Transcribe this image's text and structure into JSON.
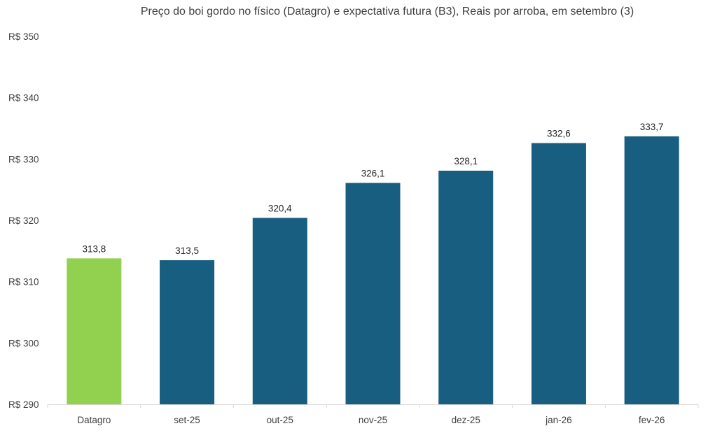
{
  "chart_data": {
    "type": "bar",
    "title": "Preço do boi gordo no físico (Datagro)  e expectativa futura (B3), Reais por arroba, em setembro (3)",
    "xlabel": "",
    "ylabel": "",
    "categories": [
      "Datagro",
      "set-25",
      "out-25",
      "nov-25",
      "dez-25",
      "jan-26",
      "fev-26"
    ],
    "values": [
      313.8,
      313.5,
      320.4,
      326.1,
      328.1,
      332.6,
      333.7
    ],
    "data_labels": [
      "313,8",
      "313,5",
      "320,4",
      "326,1",
      "328,1",
      "332,6",
      "333,7"
    ],
    "bar_colors": [
      "#92d050",
      "#175e80",
      "#175e80",
      "#175e80",
      "#175e80",
      "#175e80",
      "#175e80"
    ],
    "ylim": [
      290,
      350
    ],
    "yticks": [
      290,
      300,
      310,
      320,
      330,
      340,
      350
    ],
    "ytick_labels": [
      "R$ 290",
      "R$ 300",
      "R$ 310",
      "R$ 320",
      "R$ 330",
      "R$ 340",
      "R$ 350"
    ],
    "grid": false,
    "legend": "none"
  }
}
